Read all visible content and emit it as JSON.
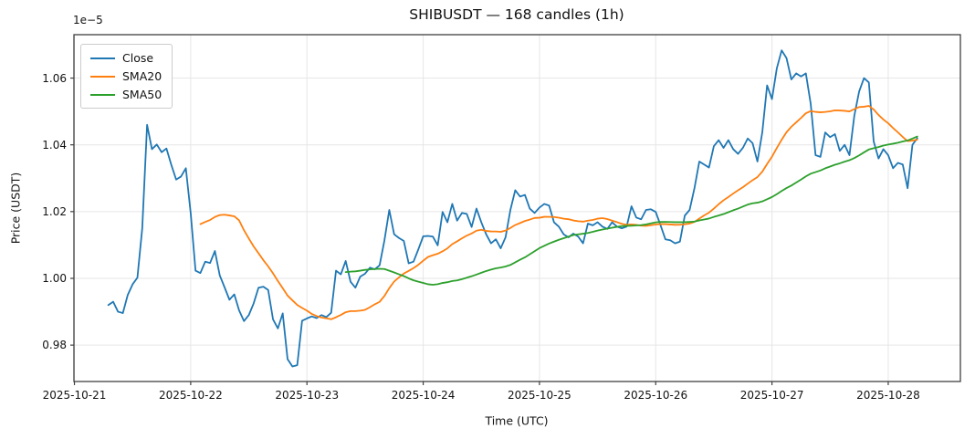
{
  "chart_data": {
    "type": "line",
    "title": "SHIBUSDT — 168 candles (1h)",
    "xlabel": "Time (UTC)",
    "ylabel": "Price (USDT)",
    "y_offset_label": "1e−5",
    "y_scale_note": "y tick values are prices multiplied by 1e-5 USDT",
    "candle_count": 168,
    "interval": "1h",
    "grid": true,
    "legend_position": "upper left",
    "x_ticks": [
      {
        "label": "2025-10-21",
        "index": -7
      },
      {
        "label": "2025-10-22",
        "index": 17
      },
      {
        "label": "2025-10-23",
        "index": 41
      },
      {
        "label": "2025-10-24",
        "index": 65
      },
      {
        "label": "2025-10-25",
        "index": 89
      },
      {
        "label": "2025-10-26",
        "index": 113
      },
      {
        "label": "2025-10-27",
        "index": 137
      },
      {
        "label": "2025-10-28",
        "index": 161
      }
    ],
    "y_ticks": [
      {
        "label": "0.98",
        "value": 0.98
      },
      {
        "label": "1.00",
        "value": 1.0
      },
      {
        "label": "1.02",
        "value": 1.02
      },
      {
        "label": "1.04",
        "value": 1.04
      },
      {
        "label": "1.06",
        "value": 1.06
      }
    ],
    "xlim_index": [
      -7.1,
      175.9
    ],
    "ylim": [
      0.9691,
      1.073
    ],
    "series": [
      {
        "name": "Close",
        "color": "#1f77b4",
        "kind": "raw"
      },
      {
        "name": "SMA20",
        "color": "#ff7f0e",
        "kind": "sma",
        "period": 20
      },
      {
        "name": "SMA50",
        "color": "#2ca02c",
        "kind": "sma",
        "period": 50
      }
    ],
    "close_values_x1e5": [
      0.992,
      0.993,
      0.99,
      0.9896,
      0.995,
      0.9982,
      1.0002,
      1.015,
      1.046,
      1.0387,
      1.0401,
      1.0378,
      1.0389,
      1.034,
      1.0296,
      1.0305,
      1.033,
      1.0196,
      1.0023,
      1.0016,
      1.005,
      1.0046,
      1.0082,
      1.0009,
      0.9973,
      0.9936,
      0.9952,
      0.9904,
      0.9872,
      0.989,
      0.9925,
      0.9972,
      0.9975,
      0.9965,
      0.9877,
      0.985,
      0.9895,
      0.9758,
      0.9736,
      0.974,
      0.9873,
      0.988,
      0.9886,
      0.9881,
      0.989,
      0.9884,
      0.9897,
      1.0023,
      1.0012,
      1.0052,
      0.999,
      0.9972,
      1.0005,
      1.0014,
      1.0032,
      1.0027,
      1.0039,
      1.0114,
      1.0205,
      1.0132,
      1.0121,
      1.0112,
      1.0045,
      1.005,
      1.0087,
      1.0126,
      1.0127,
      1.0125,
      1.0099,
      1.0199,
      1.0168,
      1.0223,
      1.0173,
      1.0196,
      1.0193,
      1.0154,
      1.0209,
      1.0168,
      1.0132,
      1.0105,
      1.0117,
      1.009,
      1.0123,
      1.0205,
      1.0264,
      1.0245,
      1.025,
      1.0209,
      1.0196,
      1.0212,
      1.0223,
      1.0218,
      1.0168,
      1.0155,
      1.0132,
      1.0123,
      1.0134,
      1.0125,
      1.0105,
      1.0164,
      1.0159,
      1.0168,
      1.0155,
      1.0148,
      1.0168,
      1.0155,
      1.015,
      1.0155,
      1.0216,
      1.0182,
      1.0177,
      1.0205,
      1.0207,
      1.0199,
      1.0159,
      1.0117,
      1.0114,
      1.0105,
      1.011,
      1.0188,
      1.0205,
      1.027,
      1.035,
      1.0341,
      1.0332,
      1.0396,
      1.0414,
      1.0391,
      1.0414,
      1.0387,
      1.0373,
      1.0391,
      1.0419,
      1.0405,
      1.035,
      1.0437,
      1.0578,
      1.0537,
      1.0629,
      1.0683,
      1.066,
      1.0596,
      1.0614,
      1.0605,
      1.0614,
      1.0523,
      1.0369,
      1.0364,
      1.0437,
      1.0423,
      1.0432,
      1.0382,
      1.04,
      1.0369,
      1.0487,
      1.056,
      1.06,
      1.0587,
      1.041,
      1.0359,
      1.0387,
      1.0369,
      1.033,
      1.0346,
      1.0341,
      1.027,
      1.04,
      1.042
    ]
  },
  "style": {
    "grid_color": "#e6e6e6",
    "spine_color": "#404040",
    "tick_color": "#404040",
    "background": "#ffffff",
    "line_width": 1.8
  }
}
